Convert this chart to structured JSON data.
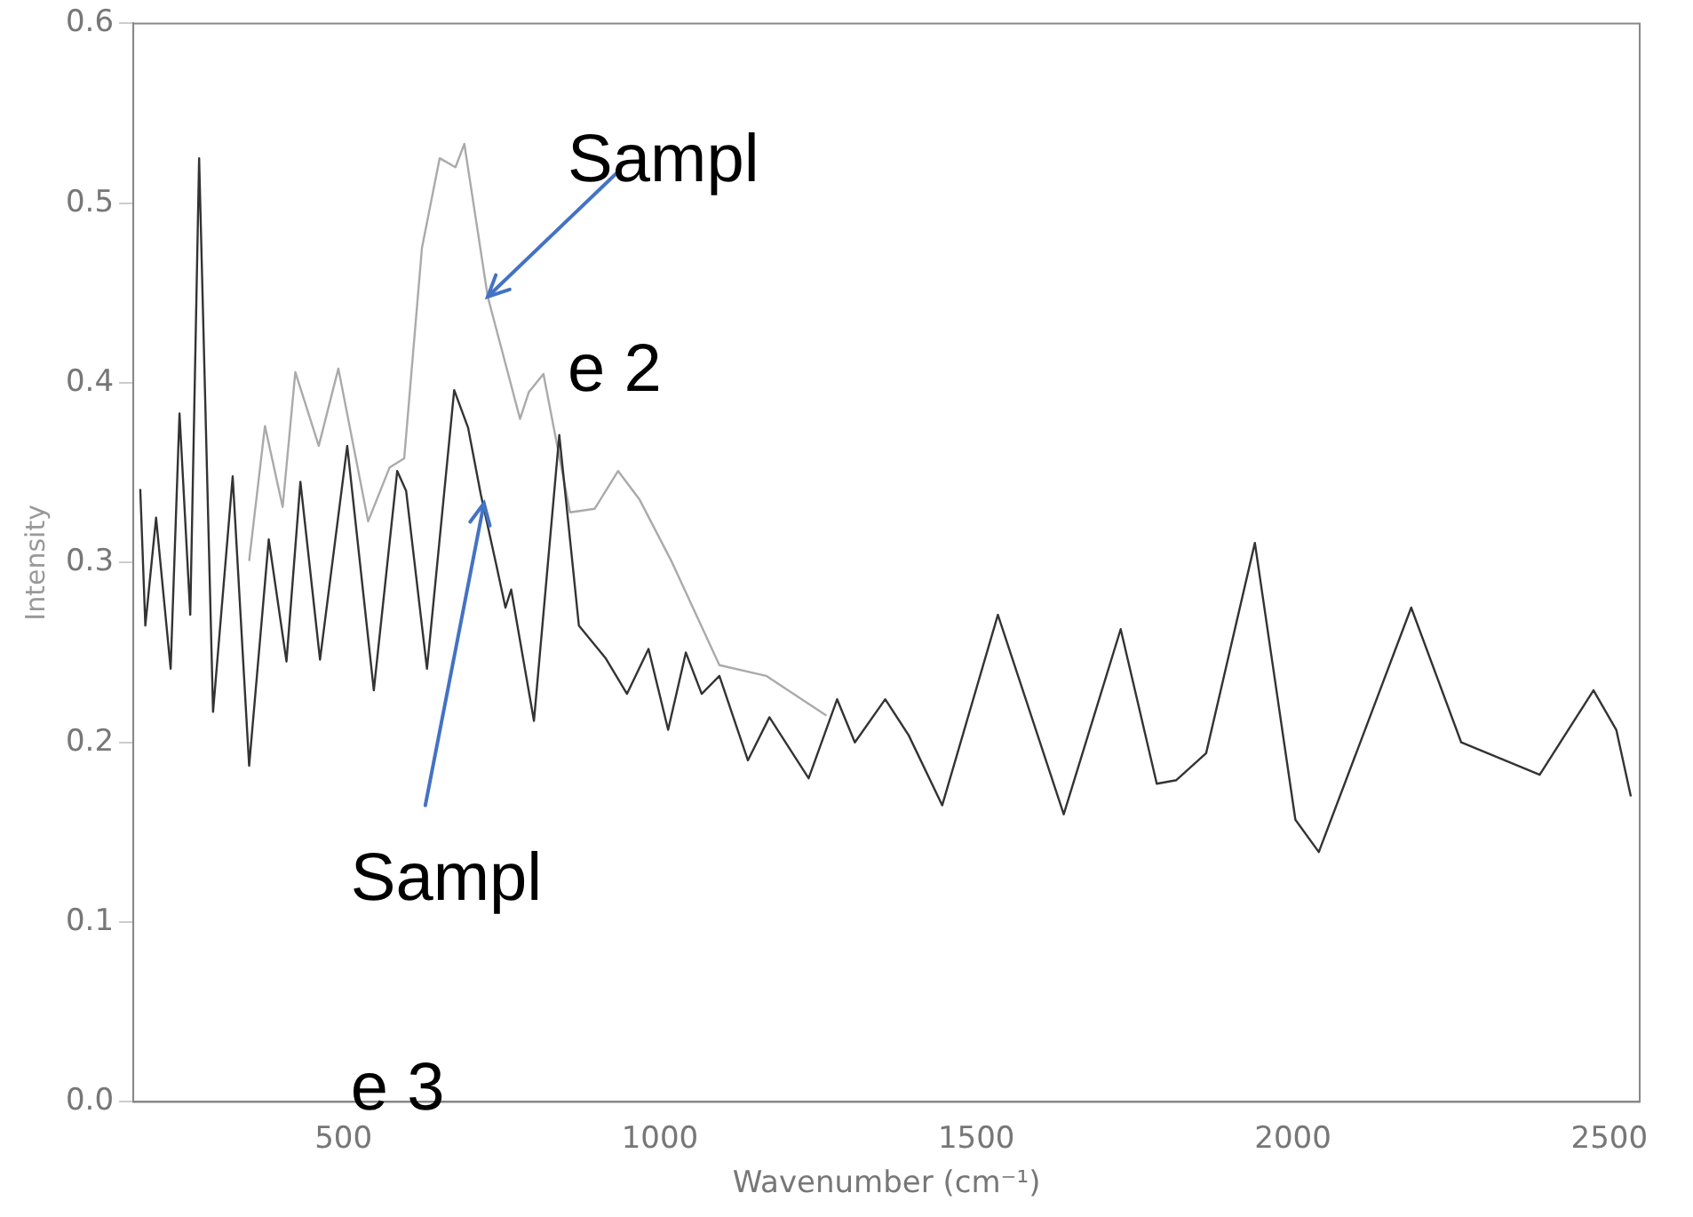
{
  "chart_data": {
    "type": "line",
    "xlabel": "Wavenumber (cm⁻¹)",
    "ylabel": "Intensity",
    "xlim": [
      168,
      2548
    ],
    "xticks": [
      500,
      1000,
      1500,
      2000,
      2500
    ],
    "ylim": [
      0,
      0.6
    ],
    "yticks": [
      {
        "value": 0,
        "label": "0.0"
      },
      0.1,
      0.2,
      0.3,
      0.4,
      0.5,
      0.6
    ],
    "grid": false,
    "legend": false,
    "marker": "none",
    "line_style": "solid",
    "series": [
      {
        "color": "#333333",
        "x": [
          179,
          187,
          204,
          227,
          241,
          258,
          272,
          294,
          325,
          351,
          382,
          410,
          432,
          463,
          506,
          548,
          585,
          599,
          632,
          675,
          697,
          717,
          742,
          756,
          765,
          801,
          841,
          872,
          914,
          948,
          982,
          1013,
          1041,
          1066,
          1094,
          1139,
          1173,
          1235,
          1280,
          1308,
          1356,
          1393,
          1446,
          1534,
          1638,
          1728,
          1785,
          1816,
          1863,
          1940,
          2004,
          2041,
          2187,
          2266,
          2390,
          2475,
          2511,
          2534
        ],
        "values": [
          0.341,
          0.265,
          0.325,
          0.241,
          0.383,
          0.271,
          0.525,
          0.217,
          0.348,
          0.187,
          0.313,
          0.245,
          0.345,
          0.246,
          0.365,
          0.229,
          0.351,
          0.34,
          0.241,
          0.396,
          0.375,
          0.338,
          0.298,
          0.275,
          0.285,
          0.212,
          0.371,
          0.265,
          0.247,
          0.227,
          0.252,
          0.207,
          0.25,
          0.227,
          0.237,
          0.19,
          0.214,
          0.18,
          0.224,
          0.2,
          0.224,
          0.204,
          0.165,
          0.271,
          0.16,
          0.263,
          0.177,
          0.179,
          0.194,
          0.311,
          0.157,
          0.139,
          0.275,
          0.2,
          0.182,
          0.229,
          0.207,
          0.17
        ]
      },
      {
        "color": "#aaaaaa",
        "x": [
          351,
          376,
          404,
          424,
          461,
          492,
          539,
          573,
          596,
          624,
          652,
          677,
          691,
          728,
          779,
          793,
          816,
          858,
          897,
          934,
          968,
          1018,
          1094,
          1168,
          1263
        ],
        "values": [
          0.301,
          0.376,
          0.331,
          0.406,
          0.365,
          0.408,
          0.323,
          0.353,
          0.358,
          0.475,
          0.525,
          0.52,
          0.533,
          0.448,
          0.38,
          0.395,
          0.405,
          0.328,
          0.33,
          0.351,
          0.335,
          0.301,
          0.243,
          0.237,
          0.215
        ]
      }
    ],
    "annotations": [
      {
        "text": "Sampl",
        "x": 728,
        "y": 0.448
      },
      "e 2",
      {
        "text": "Sampl",
        "x": 722,
        "y": 0.333
      },
      "e 3"
    ]
  }
}
